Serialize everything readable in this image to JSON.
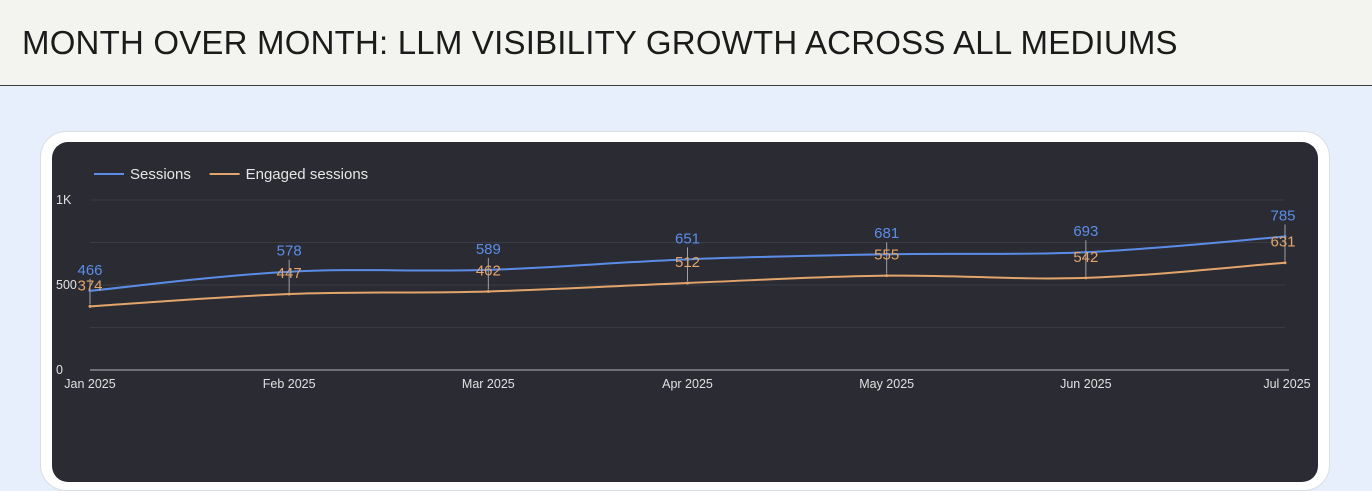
{
  "header": {
    "title": "MONTH OVER MONTH: LLM VISIBILITY GROWTH ACROSS ALL MEDIUMS"
  },
  "colors": {
    "sessions": "#5b8de8",
    "engaged": "#e3a56b",
    "grid": "#3a3b43",
    "baseline": "#9a9a9a"
  },
  "chart_data": {
    "type": "line",
    "title": "",
    "xlabel": "",
    "ylabel": "",
    "ylim": [
      0,
      1000
    ],
    "yticks": [
      {
        "value": 0,
        "label": "0"
      },
      {
        "value": 500,
        "label": "500"
      },
      {
        "value": 1000,
        "label": "1K"
      }
    ],
    "categories": [
      "Jan 2025",
      "Feb 2025",
      "Mar 2025",
      "Apr 2025",
      "May 2025",
      "Jun 2025",
      "Jul 2025"
    ],
    "series": [
      {
        "name": "Sessions",
        "values": [
          466,
          578,
          589,
          651,
          681,
          693,
          785
        ]
      },
      {
        "name": "Engaged sessions",
        "values": [
          374,
          447,
          462,
          512,
          555,
          542,
          631
        ]
      }
    ],
    "legend": "top-left",
    "grid": true
  }
}
